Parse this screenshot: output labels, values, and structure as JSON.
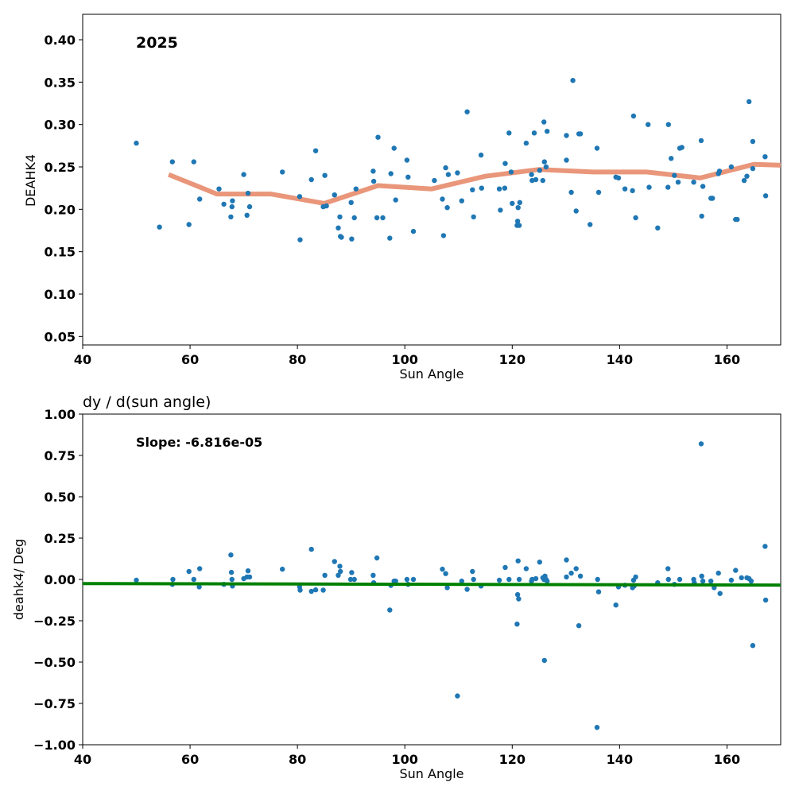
{
  "chart_data": [
    {
      "type": "scatter",
      "title": "",
      "annotation": "2025",
      "xlabel": "Sun Angle",
      "ylabel": "DEAHK4",
      "xlim": [
        40,
        170
      ],
      "ylim": [
        0.04,
        0.43
      ],
      "xticks": [
        40,
        60,
        80,
        100,
        120,
        140,
        160
      ],
      "yticks": [
        0.05,
        0.1,
        0.15,
        0.2,
        0.25,
        0.3,
        0.35,
        0.4
      ],
      "ytick_labels": [
        "0.05",
        "0.10",
        "0.15",
        "0.20",
        "0.25",
        "0.30",
        "0.35",
        "0.40"
      ],
      "point_color": "#1f77b4",
      "trend_color": "#e9967a",
      "grid": false,
      "points": [
        [
          50.0,
          0.278
        ],
        [
          54.3,
          0.179
        ],
        [
          56.7,
          0.256
        ],
        [
          59.8,
          0.182
        ],
        [
          60.7,
          0.256
        ],
        [
          61.8,
          0.212
        ],
        [
          65.4,
          0.224
        ],
        [
          66.3,
          0.206
        ],
        [
          67.6,
          0.191
        ],
        [
          67.8,
          0.203
        ],
        [
          67.9,
          0.21
        ],
        [
          70.0,
          0.241
        ],
        [
          70.6,
          0.193
        ],
        [
          70.8,
          0.219
        ],
        [
          71.1,
          0.203
        ],
        [
          77.2,
          0.244
        ],
        [
          80.4,
          0.215
        ],
        [
          80.5,
          0.164
        ],
        [
          82.6,
          0.235
        ],
        [
          83.4,
          0.269
        ],
        [
          84.8,
          0.203
        ],
        [
          85.1,
          0.24
        ],
        [
          85.4,
          0.204
        ],
        [
          86.9,
          0.217
        ],
        [
          87.6,
          0.178
        ],
        [
          87.9,
          0.191
        ],
        [
          88.0,
          0.168
        ],
        [
          88.2,
          0.167
        ],
        [
          90.0,
          0.208
        ],
        [
          90.1,
          0.165
        ],
        [
          90.6,
          0.19
        ],
        [
          90.9,
          0.224
        ],
        [
          94.1,
          0.245
        ],
        [
          94.2,
          0.233
        ],
        [
          94.8,
          0.19
        ],
        [
          95.0,
          0.285
        ],
        [
          95.9,
          0.19
        ],
        [
          97.2,
          0.166
        ],
        [
          97.4,
          0.242
        ],
        [
          98.0,
          0.272
        ],
        [
          98.3,
          0.211
        ],
        [
          100.4,
          0.258
        ],
        [
          100.6,
          0.238
        ],
        [
          101.6,
          0.174
        ],
        [
          105.5,
          0.234
        ],
        [
          107.0,
          0.212
        ],
        [
          107.2,
          0.169
        ],
        [
          107.6,
          0.249
        ],
        [
          107.9,
          0.202
        ],
        [
          108.1,
          0.241
        ],
        [
          109.8,
          0.243
        ],
        [
          110.6,
          0.21
        ],
        [
          111.6,
          0.315
        ],
        [
          112.6,
          0.223
        ],
        [
          112.8,
          0.191
        ],
        [
          114.2,
          0.264
        ],
        [
          114.3,
          0.225
        ],
        [
          117.6,
          0.224
        ],
        [
          117.8,
          0.199
        ],
        [
          118.6,
          0.225
        ],
        [
          118.7,
          0.254
        ],
        [
          119.4,
          0.29
        ],
        [
          119.8,
          0.244
        ],
        [
          120.0,
          0.207
        ],
        [
          120.9,
          0.181
        ],
        [
          121.0,
          0.186
        ],
        [
          121.1,
          0.202
        ],
        [
          121.3,
          0.181
        ],
        [
          121.4,
          0.208
        ],
        [
          122.6,
          0.278
        ],
        [
          123.6,
          0.241
        ],
        [
          123.7,
          0.234
        ],
        [
          124.1,
          0.29
        ],
        [
          124.4,
          0.235
        ],
        [
          125.1,
          0.246
        ],
        [
          125.7,
          0.234
        ],
        [
          125.9,
          0.303
        ],
        [
          126.0,
          0.256
        ],
        [
          126.3,
          0.25
        ],
        [
          126.5,
          0.292
        ],
        [
          130.1,
          0.287
        ],
        [
          130.1,
          0.258
        ],
        [
          131.0,
          0.22
        ],
        [
          131.3,
          0.352
        ],
        [
          131.9,
          0.198
        ],
        [
          132.4,
          0.289
        ],
        [
          132.7,
          0.289
        ],
        [
          134.5,
          0.182
        ],
        [
          135.8,
          0.272
        ],
        [
          136.1,
          0.22
        ],
        [
          139.3,
          0.238
        ],
        [
          139.8,
          0.237
        ],
        [
          141.0,
          0.224
        ],
        [
          142.4,
          0.222
        ],
        [
          142.6,
          0.31
        ],
        [
          143.0,
          0.19
        ],
        [
          145.3,
          0.3
        ],
        [
          145.5,
          0.226
        ],
        [
          147.1,
          0.178
        ],
        [
          149.0,
          0.226
        ],
        [
          149.1,
          0.3
        ],
        [
          149.6,
          0.26
        ],
        [
          150.2,
          0.24
        ],
        [
          150.9,
          0.232
        ],
        [
          151.2,
          0.272
        ],
        [
          151.6,
          0.273
        ],
        [
          153.8,
          0.232
        ],
        [
          155.2,
          0.281
        ],
        [
          155.3,
          0.192
        ],
        [
          155.5,
          0.227
        ],
        [
          157.0,
          0.213
        ],
        [
          157.3,
          0.213
        ],
        [
          158.4,
          0.242
        ],
        [
          158.6,
          0.245
        ],
        [
          160.8,
          0.25
        ],
        [
          161.6,
          0.188
        ],
        [
          161.9,
          0.188
        ],
        [
          163.2,
          0.234
        ],
        [
          163.7,
          0.239
        ],
        [
          164.1,
          0.327
        ],
        [
          164.8,
          0.28
        ],
        [
          164.8,
          0.248
        ],
        [
          167.1,
          0.262
        ],
        [
          167.2,
          0.216
        ]
      ],
      "trend": [
        [
          56.0,
          0.241
        ],
        [
          65.0,
          0.218
        ],
        [
          75.0,
          0.218
        ],
        [
          85.0,
          0.207
        ],
        [
          95.0,
          0.228
        ],
        [
          105.0,
          0.224
        ],
        [
          115.0,
          0.239
        ],
        [
          125.0,
          0.247
        ],
        [
          135.0,
          0.244
        ],
        [
          145.0,
          0.244
        ],
        [
          155.0,
          0.237
        ],
        [
          165.0,
          0.253
        ],
        [
          170.0,
          0.252
        ]
      ]
    },
    {
      "type": "scatter",
      "title": "dy / d(sun angle)",
      "annotation": "Slope: -6.816e-05",
      "xlabel": "Sun Angle",
      "ylabel": "deahk4/ Deg",
      "xlim": [
        40,
        170
      ],
      "ylim": [
        -1.0,
        1.0
      ],
      "xticks": [
        40,
        60,
        80,
        100,
        120,
        140,
        160
      ],
      "yticks": [
        -1.0,
        -0.75,
        -0.5,
        -0.25,
        0.0,
        0.25,
        0.5,
        0.75,
        1.0
      ],
      "ytick_labels": [
        "−1.00",
        "−0.75",
        "−0.50",
        "−0.25",
        "0.00",
        "0.25",
        "0.50",
        "0.75",
        "1.00"
      ],
      "point_color": "#1f77b4",
      "fit_color": "#008000",
      "grid": false,
      "fit_line": [
        [
          40,
          -0.025
        ],
        [
          170,
          -0.034
        ]
      ],
      "points": [
        [
          50.0,
          -0.005
        ],
        [
          56.7,
          -0.03
        ],
        [
          56.8,
          0.0
        ],
        [
          59.8,
          0.048
        ],
        [
          60.7,
          0.0
        ],
        [
          61.7,
          -0.045
        ],
        [
          61.8,
          0.065
        ],
        [
          66.3,
          -0.03
        ],
        [
          67.6,
          0.148
        ],
        [
          67.7,
          0.043
        ],
        [
          67.8,
          0.0
        ],
        [
          67.9,
          -0.04
        ],
        [
          70.0,
          0.005
        ],
        [
          70.6,
          0.015
        ],
        [
          70.8,
          0.052
        ],
        [
          71.1,
          0.015
        ],
        [
          77.2,
          0.062
        ],
        [
          80.4,
          -0.045
        ],
        [
          80.5,
          -0.065
        ],
        [
          82.6,
          -0.072
        ],
        [
          82.6,
          0.182
        ],
        [
          83.4,
          -0.063
        ],
        [
          84.8,
          -0.065
        ],
        [
          85.1,
          0.025
        ],
        [
          86.9,
          0.108
        ],
        [
          87.6,
          0.025
        ],
        [
          87.9,
          0.08
        ],
        [
          88.0,
          0.048
        ],
        [
          89.9,
          0.0
        ],
        [
          90.1,
          0.042
        ],
        [
          90.6,
          0.0
        ],
        [
          94.1,
          0.025
        ],
        [
          94.2,
          -0.02
        ],
        [
          94.8,
          0.13
        ],
        [
          97.2,
          -0.185
        ],
        [
          97.4,
          -0.036
        ],
        [
          98.0,
          -0.01
        ],
        [
          98.3,
          -0.01
        ],
        [
          100.4,
          0.0
        ],
        [
          100.6,
          -0.03
        ],
        [
          101.6,
          0.0
        ],
        [
          107.0,
          0.062
        ],
        [
          107.6,
          0.035
        ],
        [
          107.9,
          -0.05
        ],
        [
          109.8,
          -0.705
        ],
        [
          110.6,
          -0.01
        ],
        [
          111.6,
          -0.06
        ],
        [
          112.6,
          0.048
        ],
        [
          112.8,
          0.0
        ],
        [
          114.2,
          -0.04
        ],
        [
          117.6,
          -0.005
        ],
        [
          118.7,
          0.072
        ],
        [
          119.4,
          0.0
        ],
        [
          120.9,
          -0.27
        ],
        [
          121.0,
          -0.092
        ],
        [
          121.1,
          0.112
        ],
        [
          121.2,
          -0.118
        ],
        [
          121.3,
          0.0
        ],
        [
          122.6,
          0.065
        ],
        [
          123.6,
          -0.01
        ],
        [
          123.7,
          0.0
        ],
        [
          124.4,
          0.005
        ],
        [
          125.1,
          0.105
        ],
        [
          125.7,
          0.01
        ],
        [
          125.9,
          0.0
        ],
        [
          126.0,
          -0.49
        ],
        [
          126.1,
          0.02
        ],
        [
          126.3,
          0.0
        ],
        [
          126.5,
          -0.01
        ],
        [
          130.1,
          0.118
        ],
        [
          130.1,
          0.015
        ],
        [
          131.0,
          0.038
        ],
        [
          131.9,
          0.065
        ],
        [
          132.4,
          -0.28
        ],
        [
          132.7,
          0.02
        ],
        [
          135.8,
          -0.895
        ],
        [
          135.9,
          0.0
        ],
        [
          136.1,
          -0.075
        ],
        [
          139.3,
          -0.155
        ],
        [
          139.8,
          -0.045
        ],
        [
          141.0,
          -0.035
        ],
        [
          142.4,
          -0.05
        ],
        [
          142.6,
          -0.005
        ],
        [
          142.7,
          -0.04
        ],
        [
          143.0,
          0.015
        ],
        [
          147.1,
          -0.02
        ],
        [
          149.0,
          0.065
        ],
        [
          149.1,
          0.0
        ],
        [
          150.2,
          -0.03
        ],
        [
          151.2,
          0.0
        ],
        [
          153.8,
          0.0
        ],
        [
          153.9,
          -0.02
        ],
        [
          155.2,
          0.82
        ],
        [
          155.3,
          0.02
        ],
        [
          155.5,
          -0.01
        ],
        [
          157.0,
          -0.01
        ],
        [
          157.6,
          -0.05
        ],
        [
          158.4,
          0.038
        ],
        [
          158.7,
          -0.085
        ],
        [
          160.8,
          -0.005
        ],
        [
          161.6,
          0.055
        ],
        [
          162.7,
          0.01
        ],
        [
          163.7,
          0.01
        ],
        [
          164.1,
          0.005
        ],
        [
          164.5,
          -0.01
        ],
        [
          164.8,
          -0.4
        ],
        [
          167.1,
          0.2
        ],
        [
          167.2,
          -0.125
        ]
      ]
    }
  ]
}
